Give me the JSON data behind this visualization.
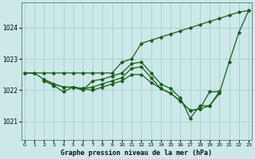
{
  "title": "Graphe pression niveau de la mer (hPa)",
  "background_color": "#cce8e8",
  "grid_color": "#aacccc",
  "line_color": "#1a5c1a",
  "x_ticks": [
    0,
    1,
    2,
    3,
    4,
    5,
    6,
    7,
    8,
    9,
    10,
    11,
    12,
    13,
    14,
    15,
    16,
    17,
    18,
    19,
    20,
    21,
    22,
    23
  ],
  "y_ticks": [
    1021,
    1022,
    1023,
    1024
  ],
  "ylim": [
    1020.4,
    1024.8
  ],
  "xlim": [
    -0.3,
    23.3
  ],
  "series": [
    {
      "x": [
        0,
        1,
        2,
        3,
        4,
        5,
        6,
        7,
        8,
        9,
        10,
        11,
        12,
        13,
        14,
        15,
        16,
        17,
        18,
        19,
        20,
        21,
        22,
        23
      ],
      "y": [
        1022.55,
        1022.55,
        1022.55,
        1022.55,
        1022.55,
        1022.55,
        1022.55,
        1022.55,
        1022.55,
        1022.55,
        1022.9,
        1023.0,
        1023.5,
        1023.6,
        1023.7,
        1023.8,
        1023.9,
        1024.0,
        1024.1,
        1024.2,
        1024.3,
        1024.4,
        1024.5,
        1024.55
      ]
    },
    {
      "x": [
        2,
        3,
        4,
        5,
        6,
        7,
        8,
        9,
        10,
        11,
        12,
        13,
        14,
        15,
        16,
        17,
        18,
        19,
        20,
        21,
        22,
        23
      ],
      "y": [
        1022.3,
        1022.15,
        1021.95,
        1022.1,
        1022.0,
        1022.3,
        1022.35,
        1022.45,
        1022.55,
        1022.85,
        1022.9,
        1022.55,
        1022.2,
        1022.05,
        1021.75,
        1021.1,
        1021.5,
        1021.5,
        1021.9,
        1022.9,
        1023.85,
        1024.55
      ]
    },
    {
      "x": [
        0,
        1,
        2,
        3,
        4,
        5,
        6,
        7,
        8,
        9,
        10,
        11,
        12,
        13,
        14,
        15,
        16,
        17,
        18,
        19,
        20
      ],
      "y": [
        1022.55,
        1022.55,
        1022.35,
        1022.2,
        1022.1,
        1022.1,
        1022.05,
        1022.0,
        1022.1,
        1022.2,
        1022.3,
        1022.5,
        1022.5,
        1022.25,
        1022.05,
        1021.9,
        1021.65,
        1021.35,
        1021.4,
        1021.95,
        1021.95
      ]
    },
    {
      "x": [
        2,
        3,
        4,
        5,
        6,
        7,
        8,
        9,
        10,
        11,
        12,
        13,
        14,
        15,
        16,
        17,
        18,
        19,
        20
      ],
      "y": [
        1022.35,
        1022.2,
        1022.1,
        1022.1,
        1022.05,
        1022.1,
        1022.2,
        1022.3,
        1022.4,
        1022.7,
        1022.75,
        1022.4,
        1022.05,
        1021.9,
        1021.65,
        1021.35,
        1021.4,
        1021.5,
        1021.95
      ]
    }
  ]
}
